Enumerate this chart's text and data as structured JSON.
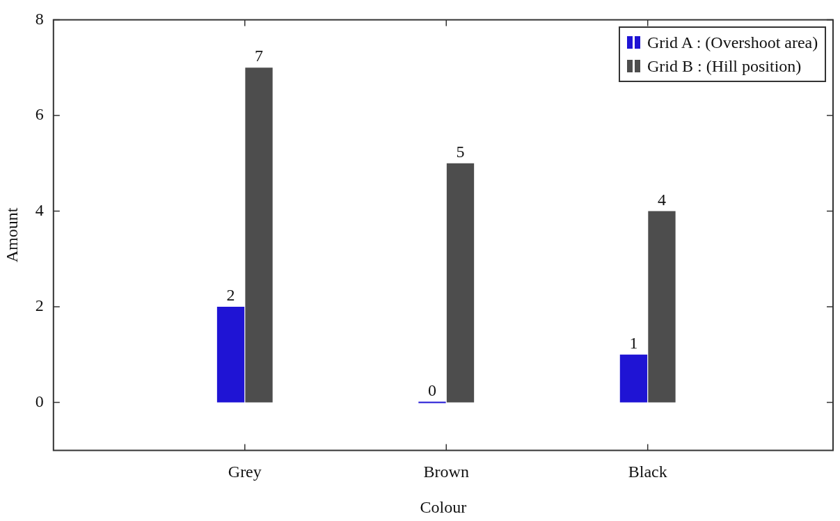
{
  "chart_data": {
    "type": "bar",
    "xlabel": "Colour",
    "ylabel": "Amount",
    "categories": [
      "Grey",
      "Brown",
      "Black"
    ],
    "series": [
      {
        "name": "Grid A : (Overshoot area)",
        "color": "#1f14d4",
        "values": [
          2,
          0,
          1
        ]
      },
      {
        "name": "Grid B : (Hill position)",
        "color": "#4d4d4d",
        "values": [
          7,
          5,
          4
        ]
      }
    ],
    "ylim": [
      -1,
      8
    ],
    "yticks": [
      0,
      2,
      4,
      6,
      8
    ],
    "grid": false,
    "legend": "top right",
    "data_labels": true
  }
}
